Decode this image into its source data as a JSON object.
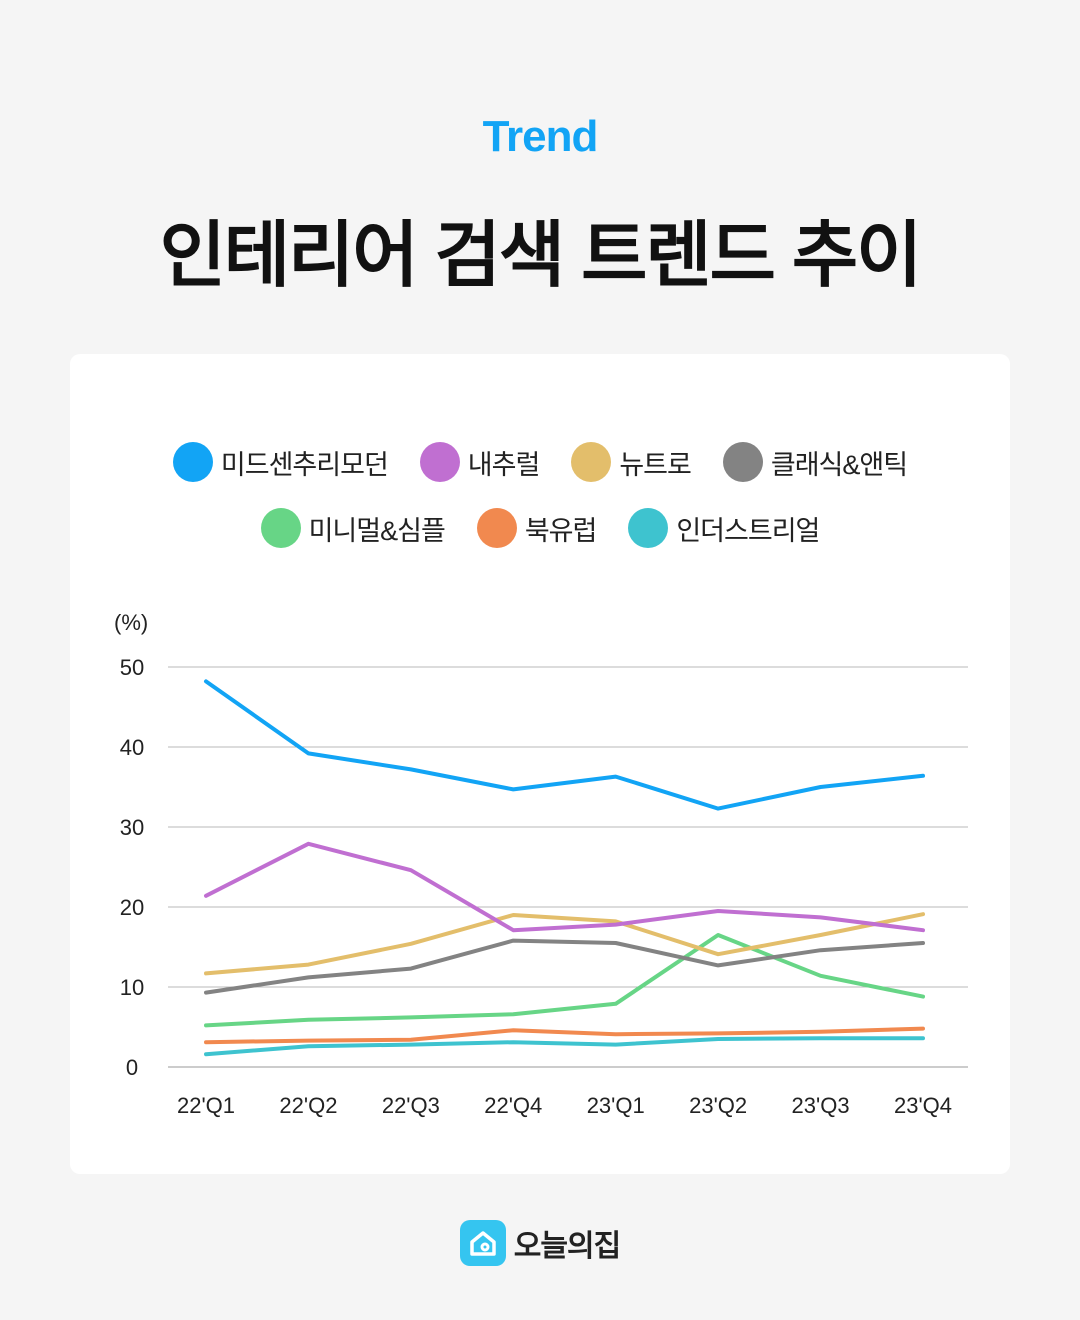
{
  "header": {
    "kicker": "Trend",
    "title": "인테리어 검색 트렌드 추이"
  },
  "footer": {
    "brand": "오늘의집",
    "logo_icon": "house-icon",
    "logo_color": "#35c5f0"
  },
  "chart_data": {
    "type": "line",
    "title": "인테리어 검색 트렌드 추이",
    "ylabel": "(%)",
    "xlabel": "",
    "ylim": [
      0,
      50
    ],
    "yticks": [
      "0",
      "10",
      "20",
      "30",
      "40",
      "50"
    ],
    "categories": [
      "22'Q1",
      "22'Q2",
      "22'Q3",
      "22'Q4",
      "23'Q1",
      "23'Q2",
      "23'Q3",
      "23'Q4"
    ],
    "grid": true,
    "legend_position": "top",
    "series": [
      {
        "name": "미드센추리모던",
        "color": "#12a4f5",
        "values": [
          48.2,
          39.2,
          37.2,
          34.7,
          36.3,
          32.3,
          35.0,
          36.4
        ]
      },
      {
        "name": "내추럴",
        "color": "#c06fd1",
        "values": [
          21.4,
          27.9,
          24.6,
          17.1,
          17.8,
          19.5,
          18.7,
          17.1
        ]
      },
      {
        "name": "뉴트로",
        "color": "#e3be6b",
        "values": [
          11.7,
          12.8,
          15.4,
          19.0,
          18.2,
          14.1,
          16.5,
          19.1
        ]
      },
      {
        "name": "클래식&앤틱",
        "color": "#838383",
        "values": [
          9.3,
          11.2,
          12.3,
          15.8,
          15.5,
          12.7,
          14.6,
          15.5
        ]
      },
      {
        "name": "미니멀&심플",
        "color": "#67d586",
        "values": [
          5.2,
          5.9,
          6.2,
          6.6,
          7.9,
          16.5,
          11.4,
          8.8
        ]
      },
      {
        "name": "북유럽",
        "color": "#f1894f",
        "values": [
          3.1,
          3.3,
          3.4,
          4.6,
          4.1,
          4.2,
          4.4,
          4.8
        ]
      },
      {
        "name": "인더스트리얼",
        "color": "#3ec3cf",
        "values": [
          1.6,
          2.6,
          2.8,
          3.1,
          2.8,
          3.5,
          3.6,
          3.6
        ]
      }
    ]
  }
}
